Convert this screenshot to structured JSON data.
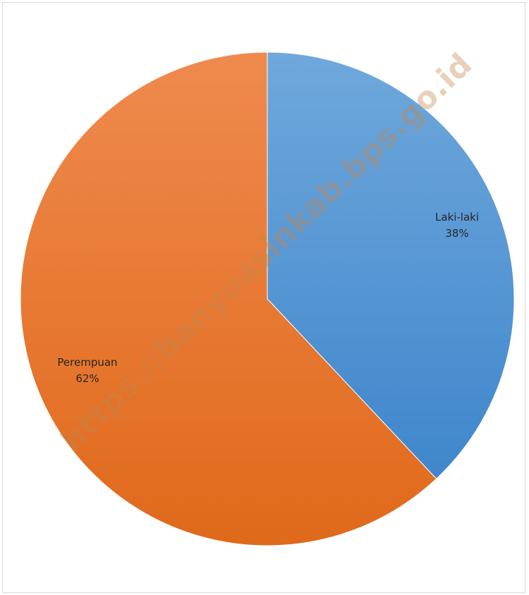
{
  "chart_data": {
    "type": "pie",
    "title": "",
    "start_angle_deg": 0,
    "direction": "clockwise",
    "slices": [
      {
        "label": "Laki-laki",
        "percent_label": "38%",
        "value": 38,
        "color": "#5B9BD5"
      },
      {
        "label": "Perempuan",
        "percent_label": "62%",
        "value": 62,
        "color": "#ED7D31"
      }
    ]
  },
  "watermark": "https://banyuasinkab.bps.go.id"
}
